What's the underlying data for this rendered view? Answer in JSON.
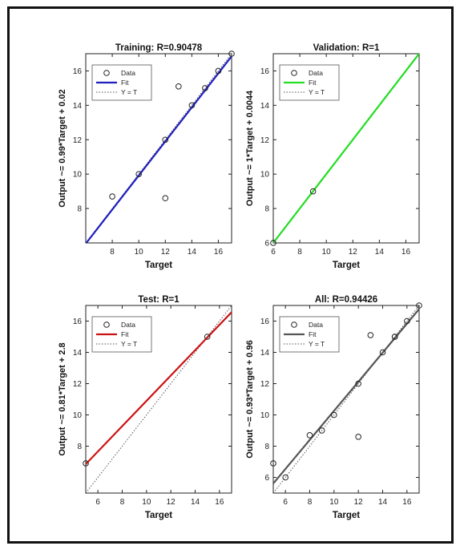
{
  "figure": {
    "chart_data": [
      {
        "type": "scatter",
        "title": "Training: R=0.90478",
        "xlabel": "Target",
        "ylabel": "Output ~= 0.99*Target + 0.02",
        "xlim": [
          6,
          17
        ],
        "ylim": [
          6,
          17
        ],
        "xticks": [
          8,
          10,
          12,
          14,
          16
        ],
        "yticks": [
          8,
          10,
          12,
          14,
          16
        ],
        "grid": false,
        "legend": {
          "placement": "top-left",
          "entries": [
            "Data",
            "Fit",
            "Y = T"
          ]
        },
        "fit_color": "#1f1fbf",
        "fit": {
          "slope": 0.99,
          "intercept": 0.02
        },
        "points": [
          [
            8,
            8.7
          ],
          [
            10,
            10
          ],
          [
            12,
            8.6
          ],
          [
            12,
            12
          ],
          [
            13,
            15.1
          ],
          [
            14,
            14
          ],
          [
            15,
            15
          ],
          [
            16,
            16
          ],
          [
            17,
            17
          ]
        ]
      },
      {
        "type": "scatter",
        "title": "Validation: R=1",
        "xlabel": "Target",
        "ylabel": "Output ~= 1*Target + 0.0044",
        "xlim": [
          6,
          17
        ],
        "ylim": [
          6,
          17
        ],
        "xticks": [
          6,
          8,
          10,
          12,
          14,
          16
        ],
        "yticks": [
          6,
          8,
          10,
          12,
          14,
          16
        ],
        "grid": false,
        "legend": {
          "placement": "top-left",
          "entries": [
            "Data",
            "Fit",
            "Y = T"
          ]
        },
        "fit_color": "#22dd22",
        "fit": {
          "slope": 1,
          "intercept": 0.0044
        },
        "points": [
          [
            6,
            6
          ],
          [
            9,
            9
          ]
        ]
      },
      {
        "type": "scatter",
        "title": "Test: R=1",
        "xlabel": "Target",
        "ylabel": "Output ~= 0.81*Target + 2.8",
        "xlim": [
          5,
          17
        ],
        "ylim": [
          5,
          17
        ],
        "xticks": [
          6,
          8,
          10,
          12,
          14,
          16
        ],
        "yticks": [
          8,
          10,
          12,
          14,
          16
        ],
        "grid": false,
        "legend": {
          "placement": "top-left",
          "entries": [
            "Data",
            "Fit",
            "Y = T"
          ]
        },
        "fit_color": "#cc1111",
        "fit": {
          "slope": 0.81,
          "intercept": 2.8
        },
        "points": [
          [
            5,
            6.9
          ],
          [
            15,
            15
          ]
        ]
      },
      {
        "type": "scatter",
        "title": "All: R=0.94426",
        "xlabel": "Target",
        "ylabel": "Output ~= 0.93*Target + 0.96",
        "xlim": [
          5,
          17
        ],
        "ylim": [
          5,
          17
        ],
        "xticks": [
          6,
          8,
          10,
          12,
          14,
          16
        ],
        "yticks": [
          6,
          8,
          10,
          12,
          14,
          16
        ],
        "grid": false,
        "legend": {
          "placement": "top-left",
          "entries": [
            "Data",
            "Fit",
            "Y = T"
          ]
        },
        "fit_color": "#555555",
        "fit": {
          "slope": 0.93,
          "intercept": 0.96
        },
        "points": [
          [
            5,
            6.9
          ],
          [
            6,
            6
          ],
          [
            8,
            8.7
          ],
          [
            9,
            9
          ],
          [
            10,
            10
          ],
          [
            12,
            8.6
          ],
          [
            12,
            12
          ],
          [
            13,
            15.1
          ],
          [
            14,
            14
          ],
          [
            15,
            15
          ],
          [
            15,
            15
          ],
          [
            16,
            16
          ],
          [
            17,
            17
          ]
        ]
      }
    ]
  }
}
